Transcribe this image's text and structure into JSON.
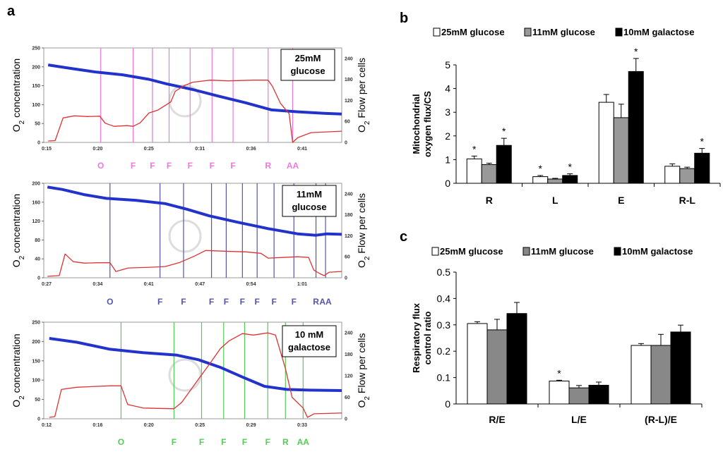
{
  "panel_labels": {
    "a": "a",
    "b": "b",
    "c": "c"
  },
  "chart_data": [
    {
      "id": "a1",
      "type": "line",
      "label_box": [
        "25mM",
        "glucose"
      ],
      "y_left_label": "O2 concentration",
      "y_right_label": "O2 Flow per cells",
      "y_left_ticks": [
        "250",
        "200",
        "150",
        "100",
        "50",
        "0"
      ],
      "y_right_ticks": [
        "240",
        "180",
        "120",
        "60",
        "0"
      ],
      "x_ticks": [
        "0:15",
        "0:20",
        "0:25",
        "0:31",
        "0:36",
        "0:41"
      ],
      "x_range": [
        14,
        48
      ],
      "y_left_range": [
        0,
        250
      ],
      "y_right_range": [
        0,
        270
      ],
      "event_color": "#ee77dd",
      "event_times": [
        20.5,
        24.2,
        26.4,
        28.3,
        30.7,
        33.2,
        35.6,
        39.6,
        42.4
      ],
      "event_labels": [
        "O",
        "F",
        "F",
        "F",
        "F",
        "F",
        "F",
        "R",
        "AA"
      ],
      "series": [
        {
          "name": "O2 concentration",
          "axis": "left",
          "color": "#2233cc",
          "x": [
            14.5,
            17,
            20,
            23,
            26,
            28,
            31,
            34,
            37,
            40,
            43,
            46,
            48
          ],
          "y": [
            205,
            196,
            186,
            179,
            167,
            155,
            140,
            122,
            105,
            86,
            81,
            77,
            75
          ]
        },
        {
          "name": "O2 flow per cells",
          "axis": "right",
          "color": "#dd3333",
          "x": [
            14.5,
            15.3,
            16.2,
            17.5,
            19,
            20.4,
            21,
            22,
            23.5,
            24.2,
            25,
            26,
            27,
            28.5,
            29,
            30,
            31,
            33,
            35,
            38,
            39.6,
            40.1,
            41,
            42,
            42.4,
            43,
            44.5,
            48
          ],
          "y": [
            4,
            5,
            70,
            76,
            74,
            75,
            55,
            46,
            48,
            46,
            56,
            84,
            92,
            116,
            146,
            162,
            172,
            178,
            176,
            178,
            178,
            160,
            112,
            82,
            0,
            14,
            28,
            32
          ]
        }
      ]
    },
    {
      "id": "a2",
      "type": "line",
      "label_box": [
        "11mM",
        "glucose"
      ],
      "y_left_label": "O2 concentration",
      "y_right_label": "O2 Flow per cells",
      "y_left_ticks": [
        "200",
        "160",
        "120",
        "80",
        "40",
        "0"
      ],
      "y_right_ticks": [
        "240",
        "180",
        "120",
        "60",
        "0"
      ],
      "x_ticks": [
        "0:27",
        "0:34",
        "0:41",
        "0:47",
        "0:54",
        "1:01"
      ],
      "x_range": [
        25.5,
        66
      ],
      "y_left_range": [
        0,
        200
      ],
      "y_right_range": [
        0,
        270
      ],
      "event_color": "#5555aa",
      "event_times": [
        34.5,
        41.3,
        44.5,
        48.3,
        50.3,
        52.5,
        54.5,
        56.8,
        59.5,
        62.5,
        63.8
      ],
      "event_labels": [
        "O",
        "F",
        "F",
        "F",
        "F",
        "F",
        "F",
        "F",
        "F",
        "R",
        "AA"
      ],
      "series": [
        {
          "name": "O2 concentration",
          "axis": "left",
          "color": "#2233cc",
          "x": [
            26,
            28,
            31,
            34,
            38,
            42,
            45,
            48,
            52,
            56,
            60,
            62.5,
            64,
            66
          ],
          "y": [
            192,
            187,
            176,
            168,
            164,
            157,
            145,
            131,
            117,
            104,
            93,
            90,
            93,
            92
          ]
        },
        {
          "name": "O2 flow per cells",
          "axis": "right",
          "color": "#dd3333",
          "x": [
            26,
            27.6,
            28.4,
            29.5,
            31,
            33,
            34.5,
            35.3,
            37,
            40,
            42,
            44,
            46,
            47.5,
            50,
            53,
            55,
            56,
            58,
            60,
            61.5,
            62.2,
            63,
            63.6,
            64.3,
            66
          ],
          "y": [
            4,
            6,
            68,
            46,
            42,
            43,
            43,
            18,
            28,
            30,
            32,
            44,
            62,
            78,
            76,
            74,
            70,
            56,
            58,
            60,
            58,
            22,
            12,
            6,
            16,
            18
          ]
        }
      ]
    },
    {
      "id": "a3",
      "type": "line",
      "label_box": [
        "10 mM",
        "galactose"
      ],
      "y_left_label": "O2 concentration",
      "y_right_label": "O2 Flow per cells",
      "y_left_ticks": [
        "250",
        "200",
        "150",
        "100",
        "50",
        "0"
      ],
      "y_right_ticks": [
        "240",
        "180",
        "120",
        "60",
        "0"
      ],
      "x_ticks": [
        "0:12",
        "0:16",
        "0:20",
        "0:25",
        "0:29",
        "0:33"
      ],
      "x_range": [
        10,
        37
      ],
      "y_left_range": [
        0,
        250
      ],
      "y_right_range": [
        0,
        270
      ],
      "event_color": "#55cc55",
      "event_times": [
        17,
        21.8,
        24.3,
        26.3,
        28.2,
        30.3,
        31.9,
        33.5
      ],
      "event_labels": [
        "O",
        "F",
        "F",
        "F",
        "F",
        "F",
        "R",
        "AA"
      ],
      "series": [
        {
          "name": "O2 concentration",
          "axis": "left",
          "color": "#2233cc",
          "x": [
            10.5,
            13,
            16,
            19,
            22,
            24,
            26,
            28,
            30,
            32,
            34,
            37
          ],
          "y": [
            208,
            198,
            180,
            171,
            165,
            153,
            133,
            108,
            84,
            76,
            74,
            73
          ]
        },
        {
          "name": "O2 flow per cells",
          "axis": "right",
          "color": "#dd3333",
          "x": [
            10.5,
            11,
            11.6,
            13,
            16,
            17,
            17.6,
            19,
            21.8,
            22.5,
            24,
            25,
            26,
            26.8,
            28,
            29,
            30.3,
            31,
            31.9,
            32.5,
            33.5,
            33.9,
            34.5,
            37
          ],
          "y": [
            4,
            6,
            82,
            88,
            92,
            92,
            40,
            30,
            28,
            46,
            110,
            152,
            196,
            218,
            238,
            234,
            240,
            234,
            140,
            60,
            30,
            4,
            14,
            16
          ]
        }
      ]
    },
    {
      "id": "b",
      "type": "bar",
      "ylabel": [
        "Mitochondrial",
        "oxygen flux/CS"
      ],
      "ylim": [
        0,
        5
      ],
      "yticks": [
        "0",
        "1",
        "2",
        "3",
        "4",
        "5"
      ],
      "categories": [
        "R",
        "L",
        "E",
        "R-L"
      ],
      "series": [
        {
          "name": "25mM glucose",
          "color": "#ffffff",
          "values": [
            1.03,
            0.28,
            3.42,
            0.72
          ],
          "errors": [
            0.12,
            0.05,
            0.33,
            0.1
          ]
        },
        {
          "name": "11mM glucose",
          "color": "#999999",
          "values": [
            0.79,
            0.18,
            2.77,
            0.62
          ],
          "errors": [
            0.06,
            0.03,
            0.57,
            0.06
          ]
        },
        {
          "name": "10mM galactose",
          "color": "#000000",
          "values": [
            1.6,
            0.33,
            4.72,
            1.27
          ],
          "errors": [
            0.3,
            0.07,
            0.55,
            0.2
          ]
        }
      ],
      "stars": [
        [
          "*",
          "",
          "*"
        ],
        [
          "*",
          "",
          "*"
        ],
        [
          "",
          "",
          "*"
        ],
        [
          "",
          "",
          "*"
        ]
      ]
    },
    {
      "id": "c",
      "type": "bar",
      "ylabel": [
        "Respiratory flux",
        "control ratio"
      ],
      "ylim": [
        0,
        0.5
      ],
      "yticks": [
        "0",
        "0.1",
        "0.2",
        "0.3",
        "0.4",
        "0.5"
      ],
      "categories": [
        "R/E",
        "L/E",
        "(R-L)/E"
      ],
      "series": [
        {
          "name": "25mM glucose",
          "color": "#ffffff",
          "values": [
            0.305,
            0.087,
            0.222
          ],
          "errors": [
            0.007,
            0.003,
            0.007
          ]
        },
        {
          "name": "11mM glucose",
          "color": "#888888",
          "values": [
            0.281,
            0.061,
            0.222
          ],
          "errors": [
            0.04,
            0.009,
            0.042
          ]
        },
        {
          "name": "10mM galactose",
          "color": "#000000",
          "values": [
            0.343,
            0.071,
            0.273
          ],
          "errors": [
            0.042,
            0.012,
            0.026
          ]
        }
      ],
      "stars": [
        [
          "",
          "",
          ""
        ],
        [
          "*",
          "",
          ""
        ],
        [
          "",
          "",
          ""
        ]
      ]
    }
  ]
}
